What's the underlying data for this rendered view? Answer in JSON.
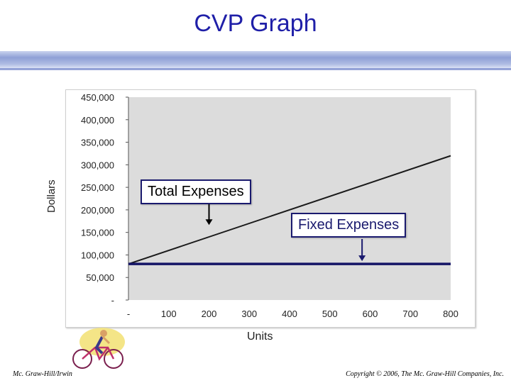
{
  "slide": {
    "title": "CVP Graph",
    "footer_left": "Mc. Graw-Hill/Irwin",
    "footer_right": "Copyright © 2006, The Mc. Graw-Hill Companies, Inc."
  },
  "callouts": {
    "total_expenses": "Total Expenses",
    "fixed_expenses": "Fixed Expenses"
  },
  "colors": {
    "title": "#1f1fa8",
    "plot_bg": "#dcdcdc",
    "total_line": "#1a1a1a",
    "fixed_line": "#141466",
    "arrow_total": "#000000",
    "arrow_fixed": "#1a1a6e"
  },
  "chart_data": {
    "type": "line",
    "title": "",
    "xlabel": "Units",
    "ylabel": "Dollars",
    "xlim": [
      0,
      800
    ],
    "ylim": [
      0,
      450000
    ],
    "x_ticks": [
      0,
      100,
      200,
      300,
      400,
      500,
      600,
      700,
      800
    ],
    "x_tick_labels": [
      "-",
      "100",
      "200",
      "300",
      "400",
      "500",
      "600",
      "700",
      "800"
    ],
    "y_ticks": [
      0,
      50000,
      100000,
      150000,
      200000,
      250000,
      300000,
      350000,
      400000,
      450000
    ],
    "y_tick_labels": [
      "-",
      "50,000",
      "100,000",
      "150,000",
      "200,000",
      "250,000",
      "300,000",
      "350,000",
      "400,000",
      "450,000"
    ],
    "grid": false,
    "series": [
      {
        "name": "Total Expenses",
        "x": [
          0,
          800
        ],
        "y": [
          80000,
          320000
        ]
      },
      {
        "name": "Fixed Expenses",
        "x": [
          0,
          800
        ],
        "y": [
          80000,
          80000
        ]
      }
    ]
  }
}
